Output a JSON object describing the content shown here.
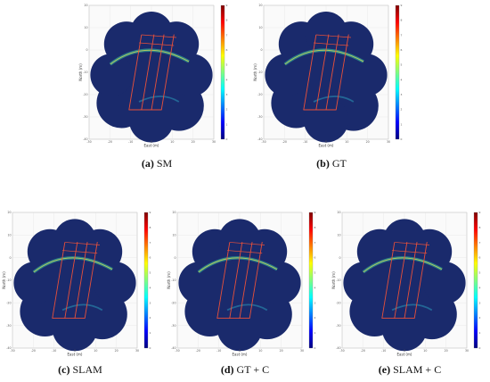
{
  "axes": {
    "xlabel": "East (m)",
    "ylabel": "North (m)",
    "x_ticks": [
      "-30",
      "-20",
      "-10",
      "0",
      "10",
      "20",
      "30"
    ],
    "y_ticks": [
      "20",
      "10",
      "0",
      "-10",
      "-20",
      "-30",
      "-40"
    ]
  },
  "colorbar": {
    "ticks": [
      "9",
      "8",
      "7",
      "6",
      "5",
      "4",
      "3",
      "2",
      "1",
      "0"
    ],
    "gradient": [
      "#7f0000",
      "#ff0000",
      "#ff8000",
      "#ffff00",
      "#80ff80",
      "#00ffff",
      "#0080ff",
      "#0000ff",
      "#00007f"
    ]
  },
  "colors": {
    "map_base": "#1a2a6c",
    "trajectory": "#e8503a"
  },
  "panels": [
    {
      "letter": "(a)",
      "name": "SM"
    },
    {
      "letter": "(b)",
      "name": "GT"
    },
    {
      "letter": "(c)",
      "name": "SLAM"
    },
    {
      "letter": "(d)",
      "name": "GT + C"
    },
    {
      "letter": "(e)",
      "name": "SLAM + C"
    }
  ]
}
